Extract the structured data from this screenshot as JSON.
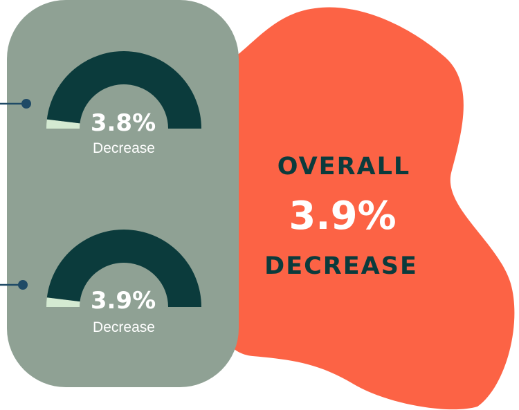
{
  "colors": {
    "panel": "#8fa194",
    "blob": "#fc6345",
    "gauge_fill": "#0b3b3c",
    "gauge_rest": "#d4ead2",
    "connector": "#1f4a66",
    "dark_text": "#0b3b3c",
    "light_text": "#ffffff"
  },
  "chart_data": {
    "type": "gauge",
    "gauges": [
      {
        "value_label": "3.8%",
        "caption": "Decrease",
        "fraction": 0.962
      },
      {
        "value_label": "3.9%",
        "caption": "Decrease",
        "fraction": 0.961
      }
    ]
  },
  "overall": {
    "line1": "OVERALL",
    "value": "3.9%",
    "line3": "DECREASE"
  }
}
